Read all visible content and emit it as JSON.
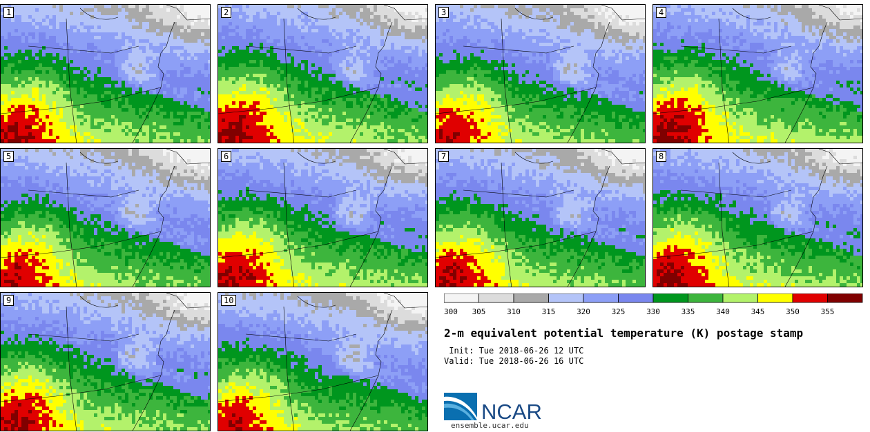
{
  "figure": {
    "title": "2-m equivalent potential temperature (K) postage stamp",
    "init_line": " Init: Tue 2018-06-26 12 UTC",
    "valid_line": "Valid: Tue 2018-06-26 16 UTC",
    "brand": "NCAR",
    "website": "ensemble.ucar.edu"
  },
  "chart_data": {
    "type": "heatmap",
    "title": "2-m equivalent potential temperature (K) postage stamp",
    "variable": "2-m equivalent potential temperature",
    "units": "K",
    "colorbar": {
      "bounds": [
        300,
        305,
        310,
        315,
        320,
        325,
        330,
        335,
        340,
        345,
        350,
        355,
        360
      ],
      "tick_labels": [
        "300",
        "305",
        "310",
        "315",
        "320",
        "325",
        "330",
        "335",
        "340",
        "345",
        "350",
        "355"
      ],
      "colors": [
        "#f4f4f4",
        "#dcdcdc",
        "#a9a9a9",
        "#b4c4f8",
        "#8d9ff6",
        "#7a87ee",
        "#00961e",
        "#3db53d",
        "#b3f26b",
        "#ffff00",
        "#e00000",
        "#800000"
      ]
    },
    "members": [
      {
        "label": "1",
        "warm_shift": 0.0
      },
      {
        "label": "2",
        "warm_shift": 0.04
      },
      {
        "label": "3",
        "warm_shift": -0.03
      },
      {
        "label": "4",
        "warm_shift": 0.05
      },
      {
        "label": "5",
        "warm_shift": -0.02
      },
      {
        "label": "6",
        "warm_shift": 0.02
      },
      {
        "label": "7",
        "warm_shift": -0.01
      },
      {
        "label": "8",
        "warm_shift": 0.03
      },
      {
        "label": "9",
        "warm_shift": 0.01
      },
      {
        "label": "10",
        "warm_shift": -0.04
      }
    ]
  }
}
